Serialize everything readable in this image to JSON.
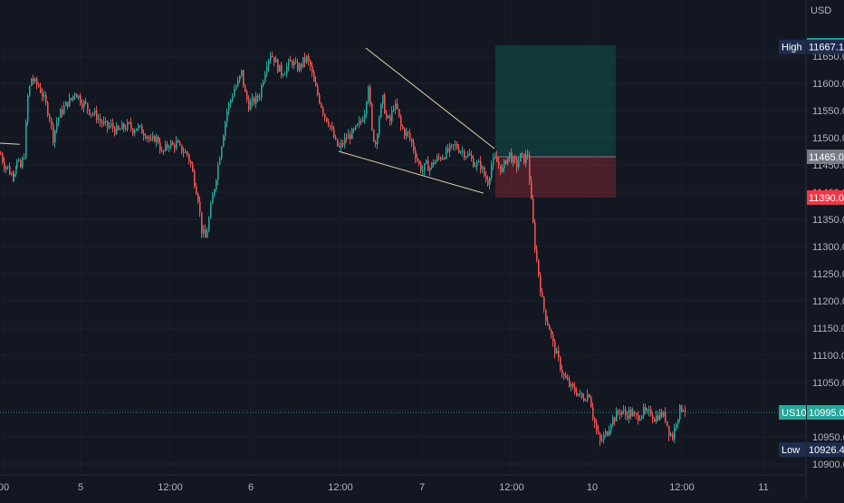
{
  "chart_data": {
    "type": "candlestick",
    "symbol": "US100",
    "currency": "USD",
    "last_price": 10995.0,
    "ylim": [
      10880,
      11700
    ],
    "y_ticks": [
      10900,
      10950,
      11000,
      11050,
      11100,
      11150,
      11200,
      11250,
      11300,
      11350,
      11400,
      11450,
      11500,
      11550,
      11600,
      11650
    ],
    "y_tick_labels": [
      "10900.0",
      "10950.0",
      "11000.0",
      "11050.0",
      "11100.0",
      "11150.0",
      "11200.0",
      "11250.0",
      "11300.0",
      "11350.0",
      "11400.0",
      "11450.0",
      "11500.0",
      "11550.0",
      "11600.0",
      "11650.0"
    ],
    "x_tick_labels": [
      "00",
      "5",
      "12:00",
      "6",
      "12:00",
      "7",
      "12:00",
      "10",
      "12:00",
      "11"
    ],
    "price_tags": [
      {
        "label": "",
        "value_text": "11670.0",
        "value": 11670.0,
        "color": "#26a69a"
      },
      {
        "label": "High",
        "value_text": "11667.1",
        "value": 11667.1,
        "color": "#1e2c4e"
      },
      {
        "label": "",
        "value_text": "11465.0",
        "value": 11465.0,
        "color": "#787b86"
      },
      {
        "label": "",
        "value_text": "11390.0",
        "value": 11390.0,
        "color": "#f23645"
      },
      {
        "label": "US100",
        "value_text": "10995.0",
        "value": 10995.0,
        "color": "#26a69a"
      },
      {
        "label": "Low",
        "value_text": "10926.4",
        "value": 10926.4,
        "color": "#1e2c4e"
      }
    ],
    "position": {
      "entry": 11465.0,
      "take_profit": 11670.0,
      "stop_loss": 11390.0
    },
    "close_path": [
      [
        0,
        11470
      ],
      [
        4,
        11450
      ],
      [
        8,
        11445
      ],
      [
        12,
        11430
      ],
      [
        15,
        11440
      ],
      [
        18,
        11455
      ],
      [
        22,
        11445
      ],
      [
        26,
        11470
      ],
      [
        30,
        11575
      ],
      [
        34,
        11610
      ],
      [
        38,
        11600
      ],
      [
        42,
        11595
      ],
      [
        46,
        11580
      ],
      [
        50,
        11560
      ],
      [
        54,
        11540
      ],
      [
        58,
        11500
      ],
      [
        62,
        11530
      ],
      [
        66,
        11545
      ],
      [
        70,
        11555
      ],
      [
        74,
        11565
      ],
      [
        78,
        11570
      ],
      [
        82,
        11585
      ],
      [
        86,
        11575
      ],
      [
        90,
        11565
      ],
      [
        94,
        11560
      ],
      [
        98,
        11550
      ],
      [
        102,
        11545
      ],
      [
        106,
        11540
      ],
      [
        110,
        11530
      ],
      [
        114,
        11525
      ],
      [
        118,
        11520
      ],
      [
        122,
        11522
      ],
      [
        126,
        11515
      ],
      [
        130,
        11512
      ],
      [
        134,
        11518
      ],
      [
        138,
        11520
      ],
      [
        142,
        11522
      ],
      [
        146,
        11515
      ],
      [
        150,
        11520
      ],
      [
        154,
        11515
      ],
      [
        158,
        11510
      ],
      [
        162,
        11505
      ],
      [
        166,
        11490
      ],
      [
        170,
        11500
      ],
      [
        174,
        11495
      ],
      [
        178,
        11470
      ],
      [
        182,
        11480
      ],
      [
        186,
        11490
      ],
      [
        190,
        11485
      ],
      [
        194,
        11490
      ],
      [
        198,
        11480
      ],
      [
        202,
        11475
      ],
      [
        206,
        11470
      ],
      [
        210,
        11450
      ],
      [
        214,
        11420
      ],
      [
        218,
        11390
      ],
      [
        222,
        11330
      ],
      [
        226,
        11315
      ],
      [
        230,
        11350
      ],
      [
        234,
        11390
      ],
      [
        238,
        11430
      ],
      [
        242,
        11470
      ],
      [
        246,
        11510
      ],
      [
        250,
        11550
      ],
      [
        254,
        11570
      ],
      [
        258,
        11590
      ],
      [
        262,
        11600
      ],
      [
        266,
        11620
      ],
      [
        270,
        11580
      ],
      [
        274,
        11560
      ],
      [
        278,
        11565
      ],
      [
        282,
        11570
      ],
      [
        286,
        11580
      ],
      [
        290,
        11610
      ],
      [
        294,
        11640
      ],
      [
        298,
        11655
      ],
      [
        302,
        11645
      ],
      [
        306,
        11630
      ],
      [
        310,
        11620
      ],
      [
        314,
        11625
      ],
      [
        318,
        11635
      ],
      [
        322,
        11640
      ],
      [
        326,
        11630
      ],
      [
        330,
        11630
      ],
      [
        334,
        11640
      ],
      [
        338,
        11645
      ],
      [
        342,
        11630
      ],
      [
        346,
        11600
      ],
      [
        350,
        11580
      ],
      [
        354,
        11560
      ],
      [
        358,
        11540
      ],
      [
        362,
        11530
      ],
      [
        366,
        11510
      ],
      [
        370,
        11490
      ],
      [
        374,
        11480
      ],
      [
        378,
        11490
      ],
      [
        382,
        11500
      ],
      [
        386,
        11505
      ],
      [
        390,
        11510
      ],
      [
        394,
        11520
      ],
      [
        398,
        11530
      ],
      [
        402,
        11550
      ],
      [
        406,
        11600
      ],
      [
        410,
        11510
      ],
      [
        414,
        11490
      ],
      [
        418,
        11540
      ],
      [
        422,
        11570
      ],
      [
        426,
        11535
      ],
      [
        430,
        11530
      ],
      [
        434,
        11560
      ],
      [
        438,
        11550
      ],
      [
        442,
        11520
      ],
      [
        446,
        11510
      ],
      [
        450,
        11505
      ],
      [
        454,
        11490
      ],
      [
        458,
        11470
      ],
      [
        462,
        11450
      ],
      [
        466,
        11440
      ],
      [
        470,
        11450
      ],
      [
        474,
        11445
      ],
      [
        478,
        11455
      ],
      [
        482,
        11460
      ],
      [
        486,
        11465
      ],
      [
        490,
        11470
      ],
      [
        494,
        11475
      ],
      [
        498,
        11480
      ],
      [
        502,
        11485
      ],
      [
        506,
        11480
      ],
      [
        510,
        11475
      ],
      [
        514,
        11470
      ],
      [
        518,
        11465
      ],
      [
        522,
        11455
      ],
      [
        526,
        11450
      ],
      [
        530,
        11450
      ],
      [
        534,
        11430
      ],
      [
        538,
        11420
      ],
      [
        542,
        11450
      ],
      [
        546,
        11460
      ],
      [
        550,
        11450
      ],
      [
        554,
        11440
      ],
      [
        558,
        11460
      ],
      [
        562,
        11470
      ],
      [
        566,
        11455
      ],
      [
        570,
        11450
      ],
      [
        574,
        11465
      ],
      [
        578,
        11460
      ],
      [
        582,
        11470
      ],
      [
        586,
        11380
      ],
      [
        590,
        11300
      ],
      [
        594,
        11250
      ],
      [
        598,
        11200
      ],
      [
        602,
        11170
      ],
      [
        606,
        11150
      ],
      [
        610,
        11120
      ],
      [
        614,
        11100
      ],
      [
        618,
        11080
      ],
      [
        622,
        11060
      ],
      [
        626,
        11050
      ],
      [
        630,
        11040
      ],
      [
        634,
        11035
      ],
      [
        638,
        11030
      ],
      [
        642,
        11020
      ],
      [
        646,
        11025
      ],
      [
        650,
        11030
      ],
      [
        654,
        10990
      ],
      [
        658,
        10960
      ],
      [
        662,
        10940
      ],
      [
        666,
        10950
      ],
      [
        670,
        10960
      ],
      [
        674,
        10980
      ],
      [
        678,
        10985
      ],
      [
        682,
        10995
      ],
      [
        686,
        10998
      ],
      [
        690,
        10990
      ],
      [
        694,
        10995
      ],
      [
        698,
        10990
      ],
      [
        702,
        10985
      ],
      [
        706,
        10992
      ],
      [
        710,
        10996
      ],
      [
        714,
        10990
      ],
      [
        718,
        10995
      ],
      [
        722,
        10985
      ],
      [
        726,
        10990
      ],
      [
        730,
        10992
      ],
      [
        734,
        10985
      ],
      [
        738,
        10960
      ],
      [
        742,
        10950
      ],
      [
        746,
        10980
      ],
      [
        750,
        11000
      ],
      [
        754,
        11005
      ],
      [
        758,
        10995
      ]
    ],
    "trendlines": [
      {
        "p1": [
          404,
          11665
        ],
        "p2": [
          546,
          11480
        ]
      },
      {
        "p1": [
          374,
          11475
        ],
        "p2": [
          534,
          11398
        ]
      },
      {
        "p1": [
          0,
          11490
        ],
        "p2": [
          22,
          11488
        ]
      }
    ]
  }
}
